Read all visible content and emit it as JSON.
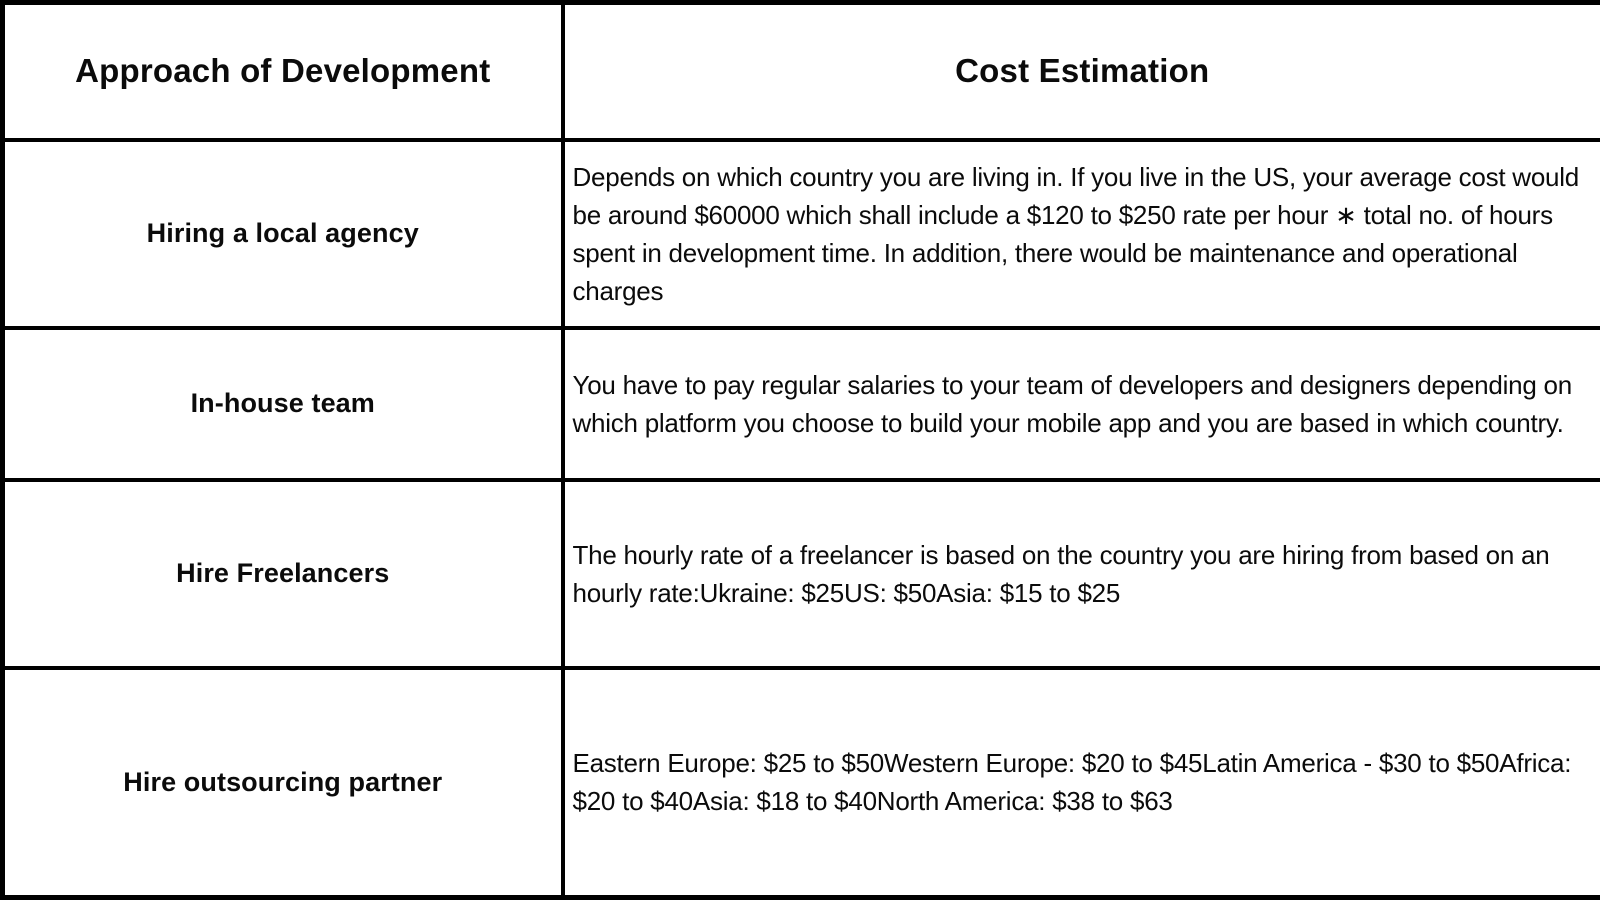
{
  "table": {
    "columns": [
      {
        "header": "Approach of Development"
      },
      {
        "header": "Cost Estimation"
      }
    ],
    "rows": [
      {
        "approach": "Hiring a local agency",
        "cost": "Depends on which country you are living in. If you live in the US, your average cost would be around $60000 which shall include a $120 to $250 rate per hour ∗ total no. of hours spent in development time. In addition, there would be maintenance and operational charges"
      },
      {
        "approach": "In-house team",
        "cost": "You have to pay regular salaries to your team of developers and designers depending on which platform you choose to build your mobile app and you are based in which country."
      },
      {
        "approach": "Hire Freelancers",
        "cost": "The hourly rate of a freelancer is based on the country you are hiring from based on an hourly rate:Ukraine: $25US: $50Asia: $15 to $25"
      },
      {
        "approach": "Hire outsourcing partner",
        "cost": "Eastern Europe: $25 to $50Western Europe: $20 to $45Latin America - $30 to $50Africa: $20 to $40Asia: $18 to $40North America: $38 to $63"
      }
    ],
    "colors": {
      "border": "#000000",
      "background": "#ffffff",
      "text": "#0b0b0b"
    }
  }
}
